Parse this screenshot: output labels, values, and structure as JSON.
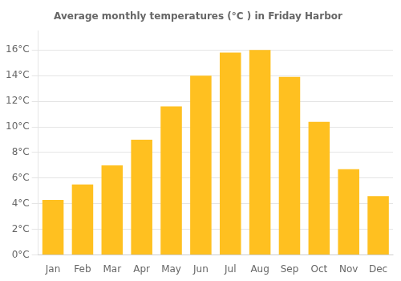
{
  "chart_data": {
    "type": "bar",
    "title": "Average monthly temperatures (°C ) in Friday Harbor",
    "categories": [
      "Jan",
      "Feb",
      "Mar",
      "Apr",
      "May",
      "Jun",
      "Jul",
      "Aug",
      "Sep",
      "Oct",
      "Nov",
      "Dec"
    ],
    "values": [
      4.3,
      5.5,
      7.0,
      9.0,
      11.6,
      14.0,
      15.8,
      16.0,
      13.9,
      10.4,
      6.7,
      4.6
    ],
    "color": "#FFC020",
    "ylim": [
      0,
      17.5
    ],
    "yticks": [
      {
        "value": 0,
        "label": "0°C"
      },
      {
        "value": 2,
        "label": "2°C"
      },
      {
        "value": 4,
        "label": "4°C"
      },
      {
        "value": 6,
        "label": "6°C"
      },
      {
        "value": 8,
        "label": "8°C"
      },
      {
        "value": 10,
        "label": "10°C"
      },
      {
        "value": 12,
        "label": "12°C"
      },
      {
        "value": 14,
        "label": "14°C"
      },
      {
        "value": 16,
        "label": "16°C"
      }
    ],
    "grid": true
  }
}
